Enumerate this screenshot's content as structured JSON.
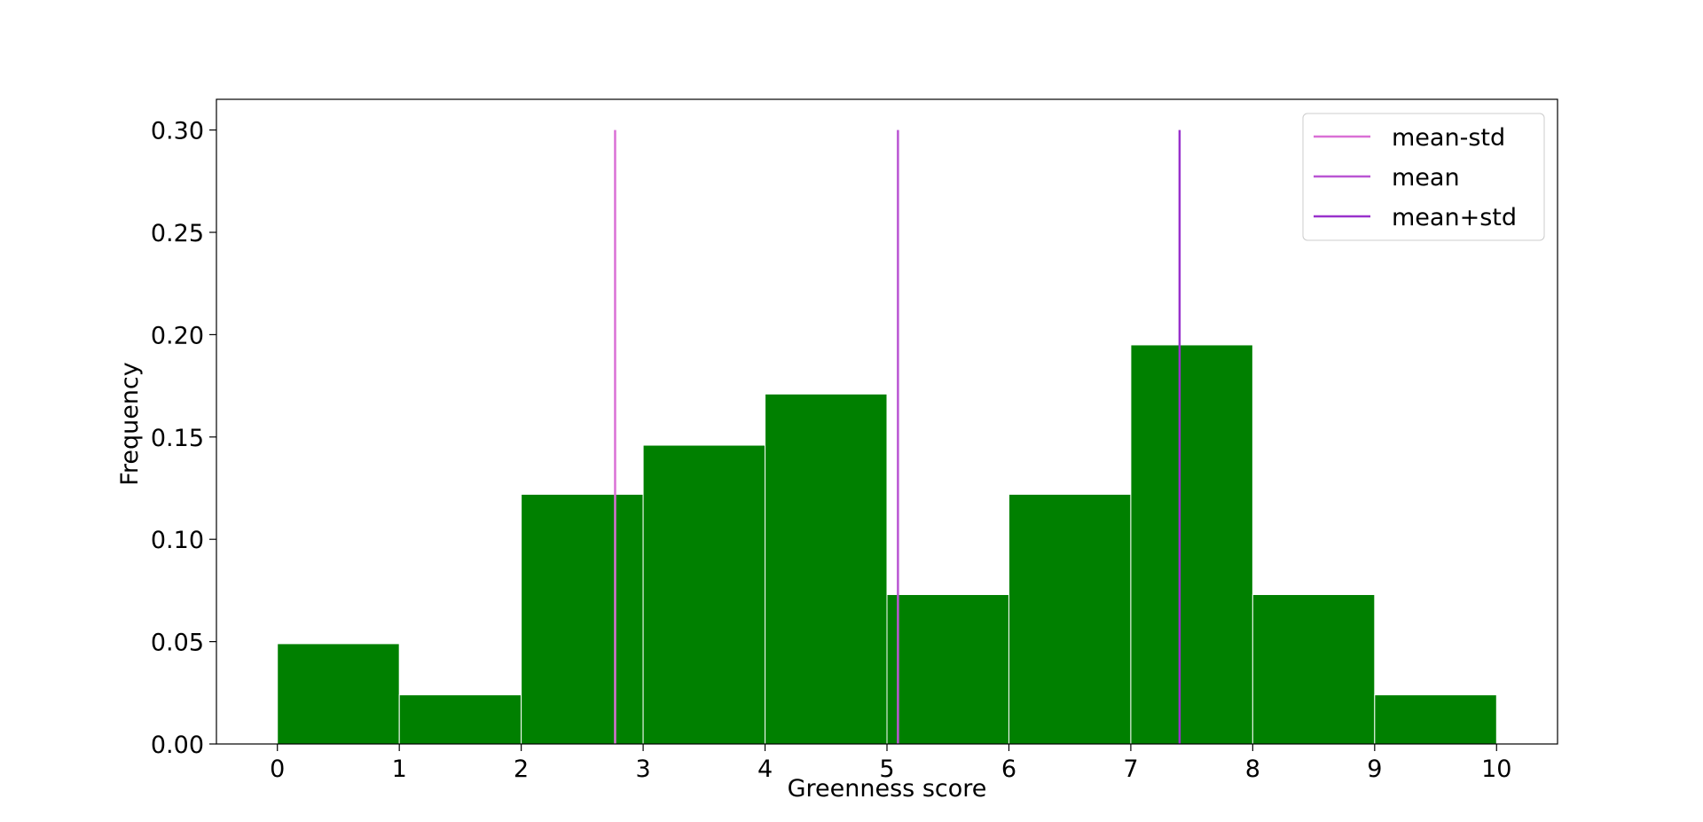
{
  "chart_data": {
    "type": "histogram",
    "xlabel": "Greenness score",
    "ylabel": "Frequency",
    "bins": [
      0,
      1,
      2,
      3,
      4,
      5,
      6,
      7,
      8,
      9,
      10
    ],
    "values": [
      0.049,
      0.024,
      0.122,
      0.146,
      0.171,
      0.073,
      0.122,
      0.195,
      0.073,
      0.024
    ],
    "color": "#008000",
    "edgecolor": "#ffffff",
    "xlim": [
      -0.5,
      10.5
    ],
    "xticks": [
      0,
      1,
      2,
      3,
      4,
      5,
      6,
      7,
      8,
      9,
      10
    ],
    "ylim": [
      0,
      0.315
    ],
    "yticks": [
      {
        "value": 0,
        "label": "0.00"
      },
      {
        "value": 0.05,
        "label": "0.05"
      },
      {
        "value": 0.1,
        "label": "0.10"
      },
      {
        "value": 0.15,
        "label": "0.15"
      },
      {
        "value": 0.2,
        "label": "0.20"
      },
      {
        "value": 0.25,
        "label": "0.25"
      },
      {
        "value": 0.3,
        "label": "0.30"
      }
    ],
    "vlines": [
      {
        "name": "mean-std",
        "color": "#da70d6",
        "x": 2.77,
        "ymin": 0,
        "ymax": 0.3
      },
      {
        "name": "mean",
        "color": "#ba55d3",
        "x": 5.09,
        "ymin": 0,
        "ymax": 0.3
      },
      {
        "name": "mean+std",
        "color": "#9932cc",
        "x": 7.4,
        "ymin": 0,
        "ymax": 0.3
      }
    ],
    "legend": "upper right",
    "grid": false
  }
}
